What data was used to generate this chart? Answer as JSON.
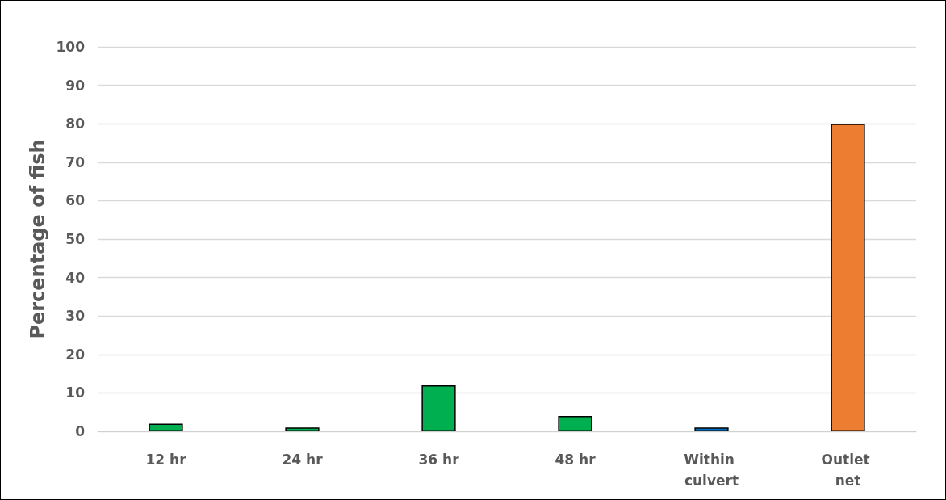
{
  "chart_data": {
    "type": "bar",
    "ylabel": "Percentage of fish",
    "categories": [
      "12 hr",
      "24 hr",
      "36 hr",
      "48 hr",
      "Within culvert",
      "Outlet net"
    ],
    "values": [
      2,
      1,
      12,
      4,
      1,
      80
    ],
    "colors": [
      "#00b050",
      "#00b050",
      "#00b050",
      "#00b050",
      "#0070c0",
      "#ed7d31"
    ],
    "ylim": [
      0,
      100
    ],
    "yticks": [
      0,
      10,
      20,
      30,
      40,
      50,
      60,
      70,
      80,
      90,
      100
    ],
    "grid": "y"
  }
}
